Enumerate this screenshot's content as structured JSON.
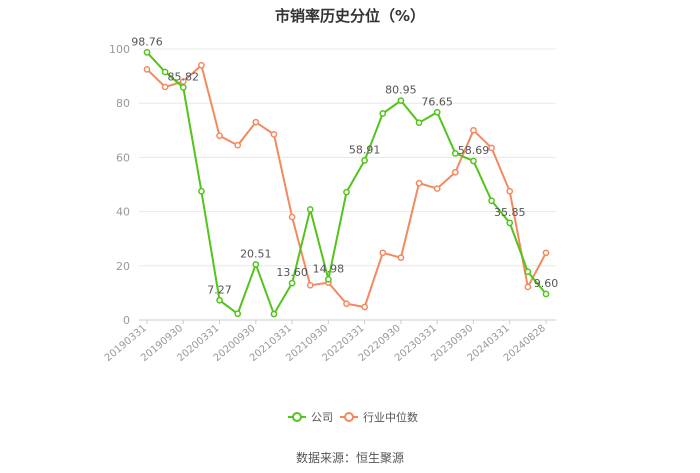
{
  "chart_data": {
    "type": "line",
    "title": "市销率历史分位（%）",
    "ylim": [
      0,
      100
    ],
    "yticks": [
      0,
      20,
      40,
      60,
      80,
      100
    ],
    "categories": [
      "20190331",
      "20190630",
      "20190930",
      "20191231",
      "20200331",
      "20200630",
      "20200930",
      "20201231",
      "20210331",
      "20210630",
      "20210930",
      "20211231",
      "20220331",
      "20220630",
      "20220930",
      "20221231",
      "20230331",
      "20230630",
      "20230930",
      "20231231",
      "20240331",
      "20240630",
      "20240828"
    ],
    "xtick_labels": [
      "20190331",
      "20190930",
      "20200331",
      "20200930",
      "20210331",
      "20210930",
      "20220331",
      "20220930",
      "20230331",
      "20230930",
      "20240331",
      "20240828"
    ],
    "xtick_indices": [
      0,
      2,
      4,
      6,
      8,
      10,
      12,
      14,
      16,
      18,
      20,
      22
    ],
    "series": [
      {
        "name": "公司",
        "color": "#52c41a",
        "values": [
          98.76,
          91.5,
          85.82,
          47.5,
          7.27,
          2.3,
          20.51,
          2.2,
          13.6,
          40.8,
          14.98,
          47.2,
          58.91,
          76.2,
          80.95,
          72.8,
          76.65,
          61.5,
          58.69,
          44.0,
          35.85,
          17.8,
          9.6
        ],
        "labels": {
          "0": "98.76",
          "2": "85.82",
          "4": "7.27",
          "6": "20.51",
          "8": "13.60",
          "10": "14.98",
          "12": "58.91",
          "14": "80.95",
          "16": "76.65",
          "18": "58.69",
          "20": "35.85",
          "22": "9.60"
        }
      },
      {
        "name": "行业中位数",
        "color": "#f4895f",
        "values": [
          92.5,
          86.0,
          88.0,
          94.0,
          68.0,
          64.5,
          73.0,
          68.5,
          38.0,
          12.8,
          13.8,
          6.0,
          4.8,
          24.8,
          23.0,
          50.5,
          48.5,
          54.5,
          70.0,
          63.5,
          47.5,
          12.2,
          24.8
        ]
      }
    ],
    "source": "数据来源：恒生聚源"
  }
}
